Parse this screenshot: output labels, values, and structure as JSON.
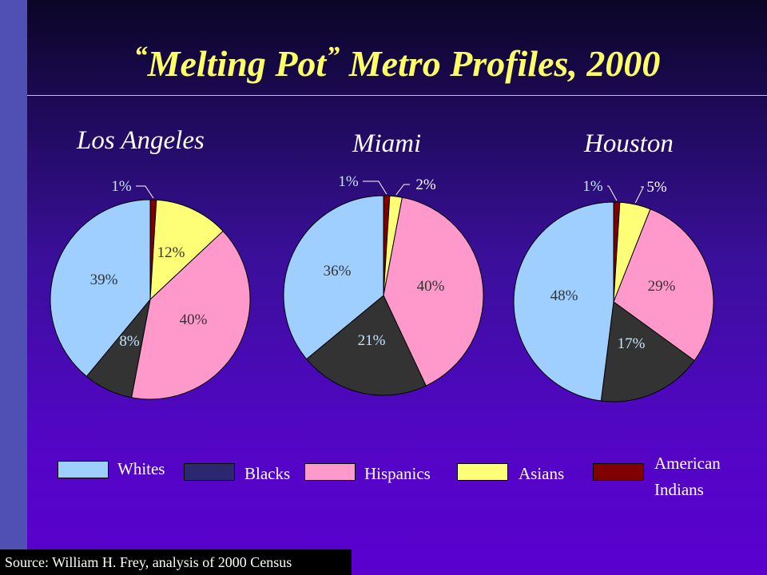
{
  "title": {
    "open_quote": "“",
    "melting_pot": "Melting Pot",
    "close_quote": "”",
    "rest": " Metro Profiles, 2000"
  },
  "source": "Source: William H. Frey, analysis of 2000 Census",
  "legend": [
    {
      "label": "Whites",
      "color": "#9fcfff"
    },
    {
      "label": "Blacks",
      "color": "#2b2870"
    },
    {
      "label": "Hispanics",
      "color": "#ff99cc"
    },
    {
      "label": "Asians",
      "color": "#ffff77"
    },
    {
      "label": "American Indians",
      "label_line1": "American",
      "label_line2": "Indians",
      "color": "#800000"
    }
  ],
  "chart_data": [
    {
      "type": "pie",
      "title": "Los Angeles",
      "categories": [
        "American Indians",
        "Asians",
        "Hispanics",
        "Blacks",
        "Whites"
      ],
      "values": [
        1,
        12,
        40,
        8,
        39
      ],
      "labels": [
        "1%",
        "12%",
        "40%",
        "8%",
        "39%"
      ],
      "colors": [
        "#800000",
        "#ffff77",
        "#ff99cc",
        "#333333",
        "#9fcfff"
      ]
    },
    {
      "type": "pie",
      "title": "Miami",
      "categories": [
        "American Indians",
        "Asians",
        "Hispanics",
        "Blacks",
        "Whites"
      ],
      "values": [
        1,
        2,
        40,
        21,
        36
      ],
      "labels": [
        "1%",
        "2%",
        "40%",
        "21%",
        "36%"
      ],
      "colors": [
        "#800000",
        "#ffff77",
        "#ff99cc",
        "#333333",
        "#9fcfff"
      ]
    },
    {
      "type": "pie",
      "title": "Houston",
      "categories": [
        "American Indians",
        "Asians",
        "Hispanics",
        "Blacks",
        "Whites"
      ],
      "values": [
        1,
        5,
        29,
        17,
        48
      ],
      "labels": [
        "1%",
        "5%",
        "29%",
        "17%",
        "48%"
      ],
      "colors": [
        "#800000",
        "#ffff77",
        "#ff99cc",
        "#333333",
        "#9fcfff"
      ]
    }
  ]
}
